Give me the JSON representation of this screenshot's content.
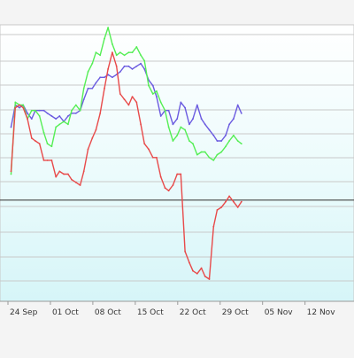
{
  "chart_data": {
    "type": "line",
    "categories": [
      "24 Sep",
      "01 Oct",
      "08 Oct",
      "15 Oct",
      "22 Oct",
      "29 Oct",
      "05 Nov",
      "12 Nov"
    ],
    "ylim": [
      0,
      100
    ],
    "grid": true,
    "reference_line": 36.6,
    "x": [
      -2.7,
      -2.0,
      -1.3,
      -0.7,
      0,
      0.7,
      1.3,
      2.0,
      2.7,
      3.3,
      4.0,
      4.7,
      5.3,
      6.0,
      6.7,
      7.3,
      8.0,
      8.7,
      9.3,
      10.0,
      10.7,
      11.3,
      12.0,
      12.7,
      13.3,
      14.0,
      14.7,
      15.3,
      16.0,
      16.7,
      17.3,
      18.0,
      18.7,
      19.3,
      20.0,
      20.7,
      21.3,
      22.0,
      22.7,
      23.3,
      24.0,
      24.7,
      25.3,
      26.0,
      26.7,
      27.3,
      28.0,
      28.7,
      29.3,
      30.0,
      30.7,
      31.3,
      32.0,
      32.7,
      33.3,
      34.0,
      34.7,
      35.3
    ],
    "series": [
      {
        "color": "#6b5be0",
        "values": [
          63,
          71,
          70,
          71,
          68,
          66,
          69,
          69,
          69,
          68,
          67,
          66,
          67,
          65,
          67,
          68,
          68,
          69,
          73,
          77,
          77,
          79,
          81,
          81,
          82,
          81,
          82,
          83,
          85,
          85,
          84,
          85,
          86,
          84,
          80,
          78,
          74,
          67,
          69,
          69,
          64,
          66,
          72,
          70,
          64,
          66,
          71,
          66,
          64,
          62,
          60,
          58,
          58,
          60,
          64,
          66,
          71,
          68
        ]
      },
      {
        "color": "#55ee55",
        "values": [
          46,
          72,
          71,
          71,
          66,
          69,
          69,
          67,
          61,
          57,
          56,
          63,
          64,
          65,
          64,
          69,
          71,
          69,
          77,
          83,
          86,
          90,
          89,
          95,
          99,
          93,
          89,
          90,
          89,
          90,
          90,
          92,
          89,
          87,
          78,
          75,
          76,
          72,
          69,
          63,
          58,
          60,
          63,
          62,
          58,
          57,
          53,
          54,
          54,
          52,
          51,
          53,
          54,
          56,
          58,
          60,
          58,
          57
        ]
      },
      {
        "color": "#e84a4a",
        "values": [
          47,
          70,
          71,
          70,
          66,
          59,
          58,
          57,
          51,
          51,
          51,
          45,
          47,
          46,
          46,
          44,
          43,
          42,
          47,
          55,
          59,
          62,
          68,
          77,
          84,
          90,
          85,
          75,
          73,
          71,
          74,
          72,
          64,
          57,
          55,
          52,
          52,
          45,
          41,
          40,
          42,
          46,
          46,
          18,
          14,
          11,
          10,
          12,
          9,
          8,
          27,
          33,
          34,
          36,
          38,
          36,
          34,
          36
        ]
      }
    ]
  }
}
